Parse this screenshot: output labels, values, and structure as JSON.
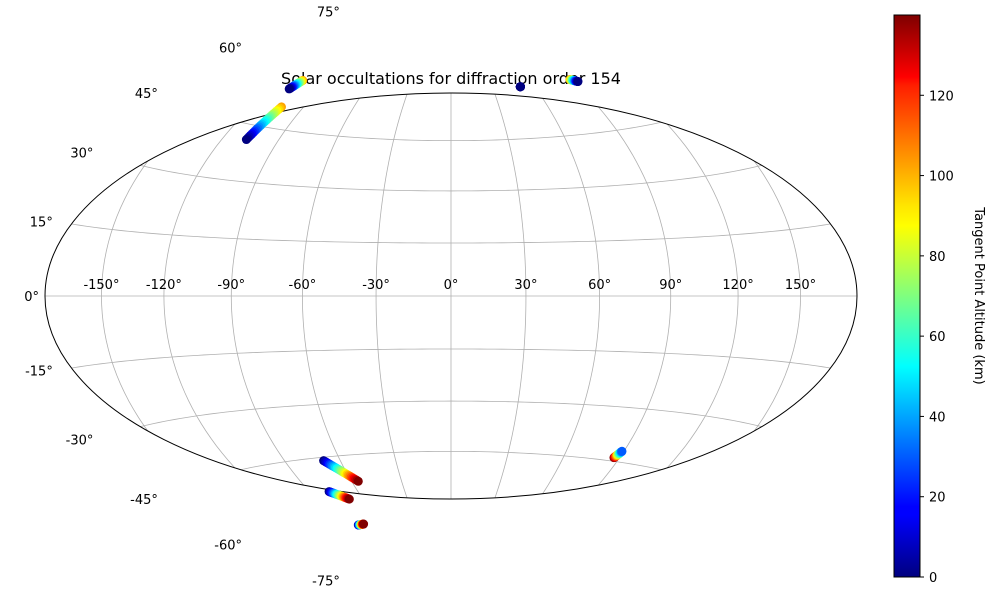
{
  "chart_data": {
    "type": "scatter",
    "projection": "hammer",
    "title": "Solar occultations for diffraction order 154",
    "x_ticks": [
      "-150°",
      "-120°",
      "-90°",
      "-60°",
      "-30°",
      "0°",
      "30°",
      "60°",
      "90°",
      "120°",
      "150°"
    ],
    "x_tick_values": [
      -150,
      -120,
      -90,
      -60,
      -30,
      0,
      30,
      60,
      90,
      120,
      150
    ],
    "y_ticks": [
      "75°",
      "60°",
      "45°",
      "30°",
      "15°",
      "0°",
      "-15°",
      "-30°",
      "-45°",
      "-60°",
      "-75°"
    ],
    "y_tick_values": [
      75,
      60,
      45,
      30,
      15,
      0,
      -15,
      -30,
      -45,
      -60,
      -75
    ],
    "grid": true,
    "colormap": "jet",
    "colorbar": {
      "label": "Tangent Point Altitude (km)",
      "range": [
        0,
        140
      ],
      "ticks": [
        "0",
        "20",
        "40",
        "60",
        "80",
        "100",
        "120"
      ],
      "tick_values": [
        0,
        20,
        40,
        60,
        80,
        100,
        120
      ]
    },
    "series": [
      {
        "lon_start": -108,
        "lat_start": 59,
        "lon_end": -110,
        "lat_end": 56,
        "alt_start": 100,
        "alt_end": 0
      },
      {
        "lon_start": -103,
        "lat_start": 51,
        "lon_end": -107,
        "lat_end": 41,
        "alt_start": 100,
        "alt_end": 0
      },
      {
        "lon_start": 50,
        "lat_start": 61,
        "lon_end": 50,
        "lat_end": 61,
        "alt_start": 0,
        "alt_end": 0
      },
      {
        "lon_start": 89,
        "lat_start": 61,
        "lon_end": 93,
        "lat_end": 60,
        "alt_start": 100,
        "alt_end": 0
      },
      {
        "lon_start": -69,
        "lat_start": -46,
        "lon_end": -56,
        "lat_end": -53,
        "alt_start": 0,
        "alt_end": 140
      },
      {
        "lon_start": -78,
        "lat_start": -55,
        "lon_end": -69,
        "lat_end": -58,
        "alt_start": 0,
        "alt_end": 140
      },
      {
        "lon_start": -80,
        "lat_start": -66,
        "lon_end": -75,
        "lat_end": -66,
        "alt_start": 0,
        "alt_end": 140
      },
      {
        "lon_start": 87,
        "lat_start": -44,
        "lon_end": 89,
        "lat_end": -42,
        "alt_start": 140,
        "alt_end": 30
      }
    ]
  }
}
